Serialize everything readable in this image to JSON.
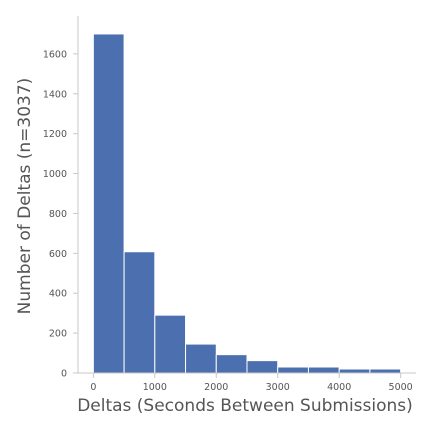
{
  "chart_data": {
    "type": "bar",
    "title": "",
    "xlabel": "Deltas (Seconds Between Submissions)",
    "ylabel": "Number of Deltas (n=3037)",
    "bins": [
      {
        "start": 0,
        "end": 500,
        "count": 1700
      },
      {
        "start": 500,
        "end": 1000,
        "count": 608
      },
      {
        "start": 1000,
        "end": 1500,
        "count": 290
      },
      {
        "start": 1500,
        "end": 2000,
        "count": 145
      },
      {
        "start": 2000,
        "end": 2500,
        "count": 92
      },
      {
        "start": 2500,
        "end": 3000,
        "count": 62
      },
      {
        "start": 3000,
        "end": 3500,
        "count": 30
      },
      {
        "start": 3500,
        "end": 4000,
        "count": 30
      },
      {
        "start": 4000,
        "end": 4500,
        "count": 20
      },
      {
        "start": 4500,
        "end": 5000,
        "count": 20
      }
    ],
    "xticks": [
      0,
      1000,
      2000,
      3000,
      4000,
      5000
    ],
    "yticks": [
      0,
      200,
      400,
      600,
      800,
      1000,
      1200,
      1400,
      1600
    ],
    "xlim": [
      -250,
      5250
    ],
    "ylim": [
      0,
      1790
    ],
    "bar_color": "#4c6faf",
    "bar_edge_color": "#ffffff",
    "grid": false
  }
}
